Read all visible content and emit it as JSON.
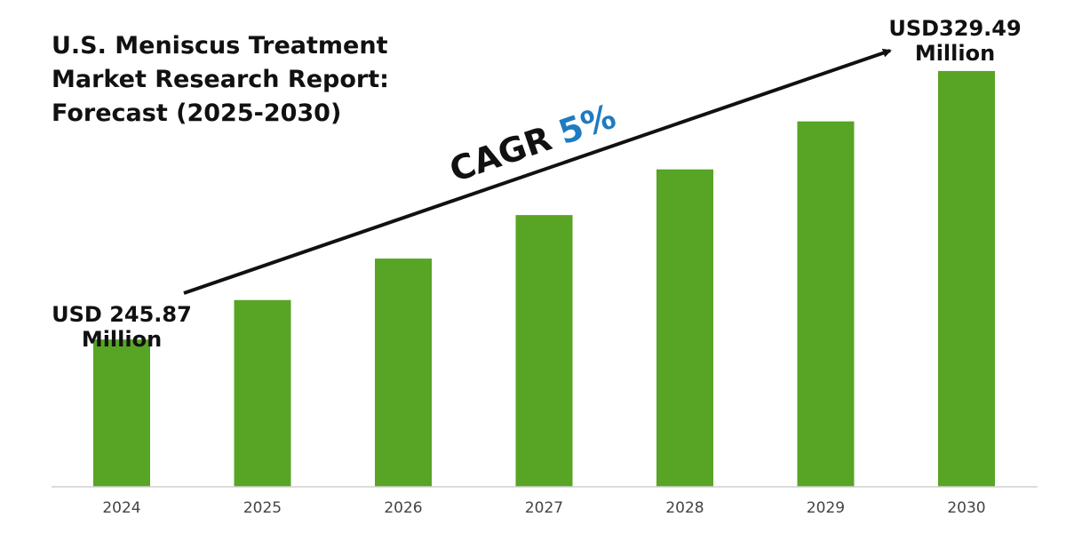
{
  "title_lines": [
    "U.S. Meniscus Treatment",
    "Market Research Report:",
    "Forecast (2025-2030)"
  ],
  "cagr": {
    "label": "CAGR",
    "value": "5%",
    "value_color": "#1f7bc1"
  },
  "start_callout": {
    "line1": "USD 245.87",
    "line2": "Million"
  },
  "end_callout": {
    "line1": "USD329.49",
    "line2": "Million"
  },
  "colors": {
    "bar": "#58a424",
    "axis": "#d0d0d0",
    "tick_text": "#444444",
    "arrow": "#111111"
  },
  "chart_data": {
    "type": "bar",
    "categories": [
      "2024",
      "2025",
      "2026",
      "2027",
      "2028",
      "2029",
      "2030"
    ],
    "values": [
      245.87,
      258.16,
      271.07,
      284.62,
      298.85,
      313.8,
      329.49
    ],
    "ylim": [
      200,
      335
    ],
    "grid": false,
    "legend": "none"
  }
}
